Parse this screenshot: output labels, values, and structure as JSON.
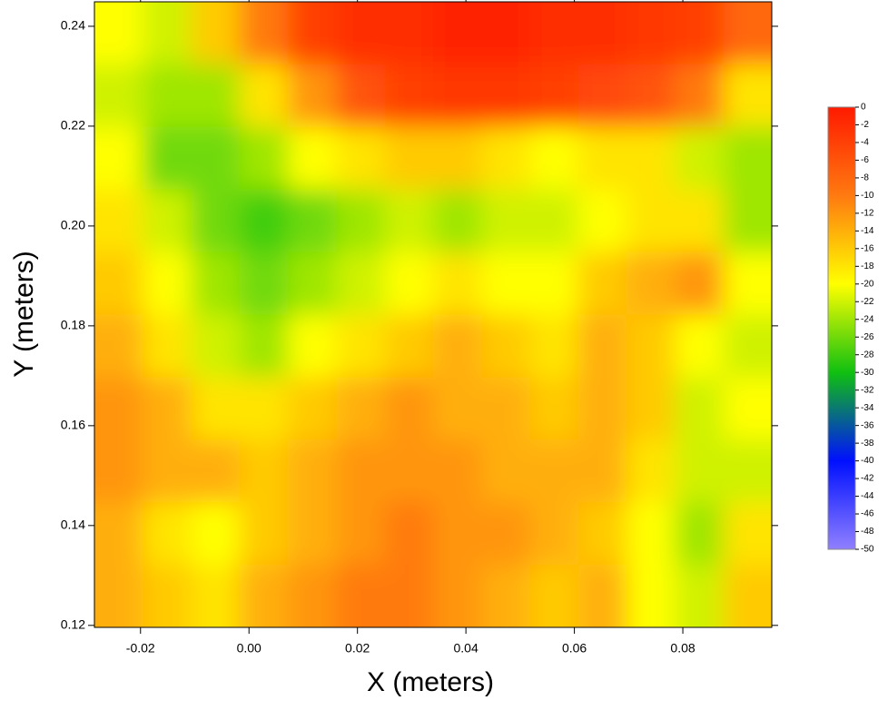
{
  "chart_data": {
    "type": "heatmap",
    "x_label": "X (meters)",
    "y_label": "Y (meters)",
    "xlim": [
      -0.0285,
      0.0964
    ],
    "ylim": [
      0.1196,
      0.2449
    ],
    "xticks": [
      -0.02,
      {
        "value": 0,
        "label": "0.00"
      },
      0.02,
      0.04,
      0.06,
      0.08
    ],
    "yticks": [
      0.12,
      0.14,
      0.16,
      0.18,
      {
        "value": 0.2,
        "label": "0.20"
      },
      0.22,
      0.24
    ],
    "zlim": [
      -50,
      0
    ],
    "zticks": [
      0,
      -2,
      -4,
      -6,
      -8,
      -10,
      -12,
      -14,
      -16,
      -18,
      -20,
      -22,
      -24,
      -26,
      -28,
      -30,
      -32,
      -34,
      -36,
      -38,
      -40,
      -42,
      -44,
      -46,
      -48,
      -50
    ],
    "colorscale": [
      [
        0,
        "#ff1a00"
      ],
      [
        -10,
        "#ff7a10"
      ],
      [
        -20,
        "#ffff00"
      ],
      [
        -30,
        "#10c010"
      ],
      [
        -40,
        "#0010ff"
      ],
      [
        -50,
        "#9080ff"
      ]
    ],
    "z": [
      [
        -20,
        -22,
        -16,
        -10,
        -4,
        -2,
        -2,
        -1,
        -1,
        -2,
        -2,
        -3,
        -4,
        -8
      ],
      [
        -22,
        -24,
        -24,
        -18,
        -12,
        -6,
        -4,
        -3,
        -3,
        -4,
        -5,
        -6,
        -10,
        -18
      ],
      [
        -20,
        -26,
        -26,
        -24,
        -20,
        -18,
        -16,
        -16,
        -18,
        -20,
        -18,
        -18,
        -22,
        -24
      ],
      [
        -18,
        -22,
        -26,
        -28,
        -26,
        -24,
        -22,
        -24,
        -22,
        -22,
        -20,
        -18,
        -18,
        -24
      ],
      [
        -16,
        -20,
        -24,
        -26,
        -24,
        -22,
        -20,
        -18,
        -20,
        -20,
        -16,
        -14,
        -12,
        -20
      ],
      [
        -14,
        -18,
        -22,
        -24,
        -20,
        -18,
        -16,
        -14,
        -16,
        -18,
        -14,
        -16,
        -20,
        -22
      ],
      [
        -12,
        -14,
        -18,
        -18,
        -16,
        -14,
        -12,
        -14,
        -14,
        -16,
        -14,
        -16,
        -22,
        -20
      ],
      [
        -12,
        -14,
        -14,
        -16,
        -14,
        -12,
        -12,
        -12,
        -14,
        -14,
        -14,
        -18,
        -22,
        -22
      ],
      [
        -14,
        -18,
        -20,
        -16,
        -14,
        -12,
        -10,
        -12,
        -12,
        -14,
        -16,
        -20,
        -24,
        -18
      ],
      [
        -14,
        -16,
        -18,
        -14,
        -12,
        -10,
        -10,
        -12,
        -14,
        -16,
        -14,
        -20,
        -22,
        -16
      ]
    ]
  }
}
